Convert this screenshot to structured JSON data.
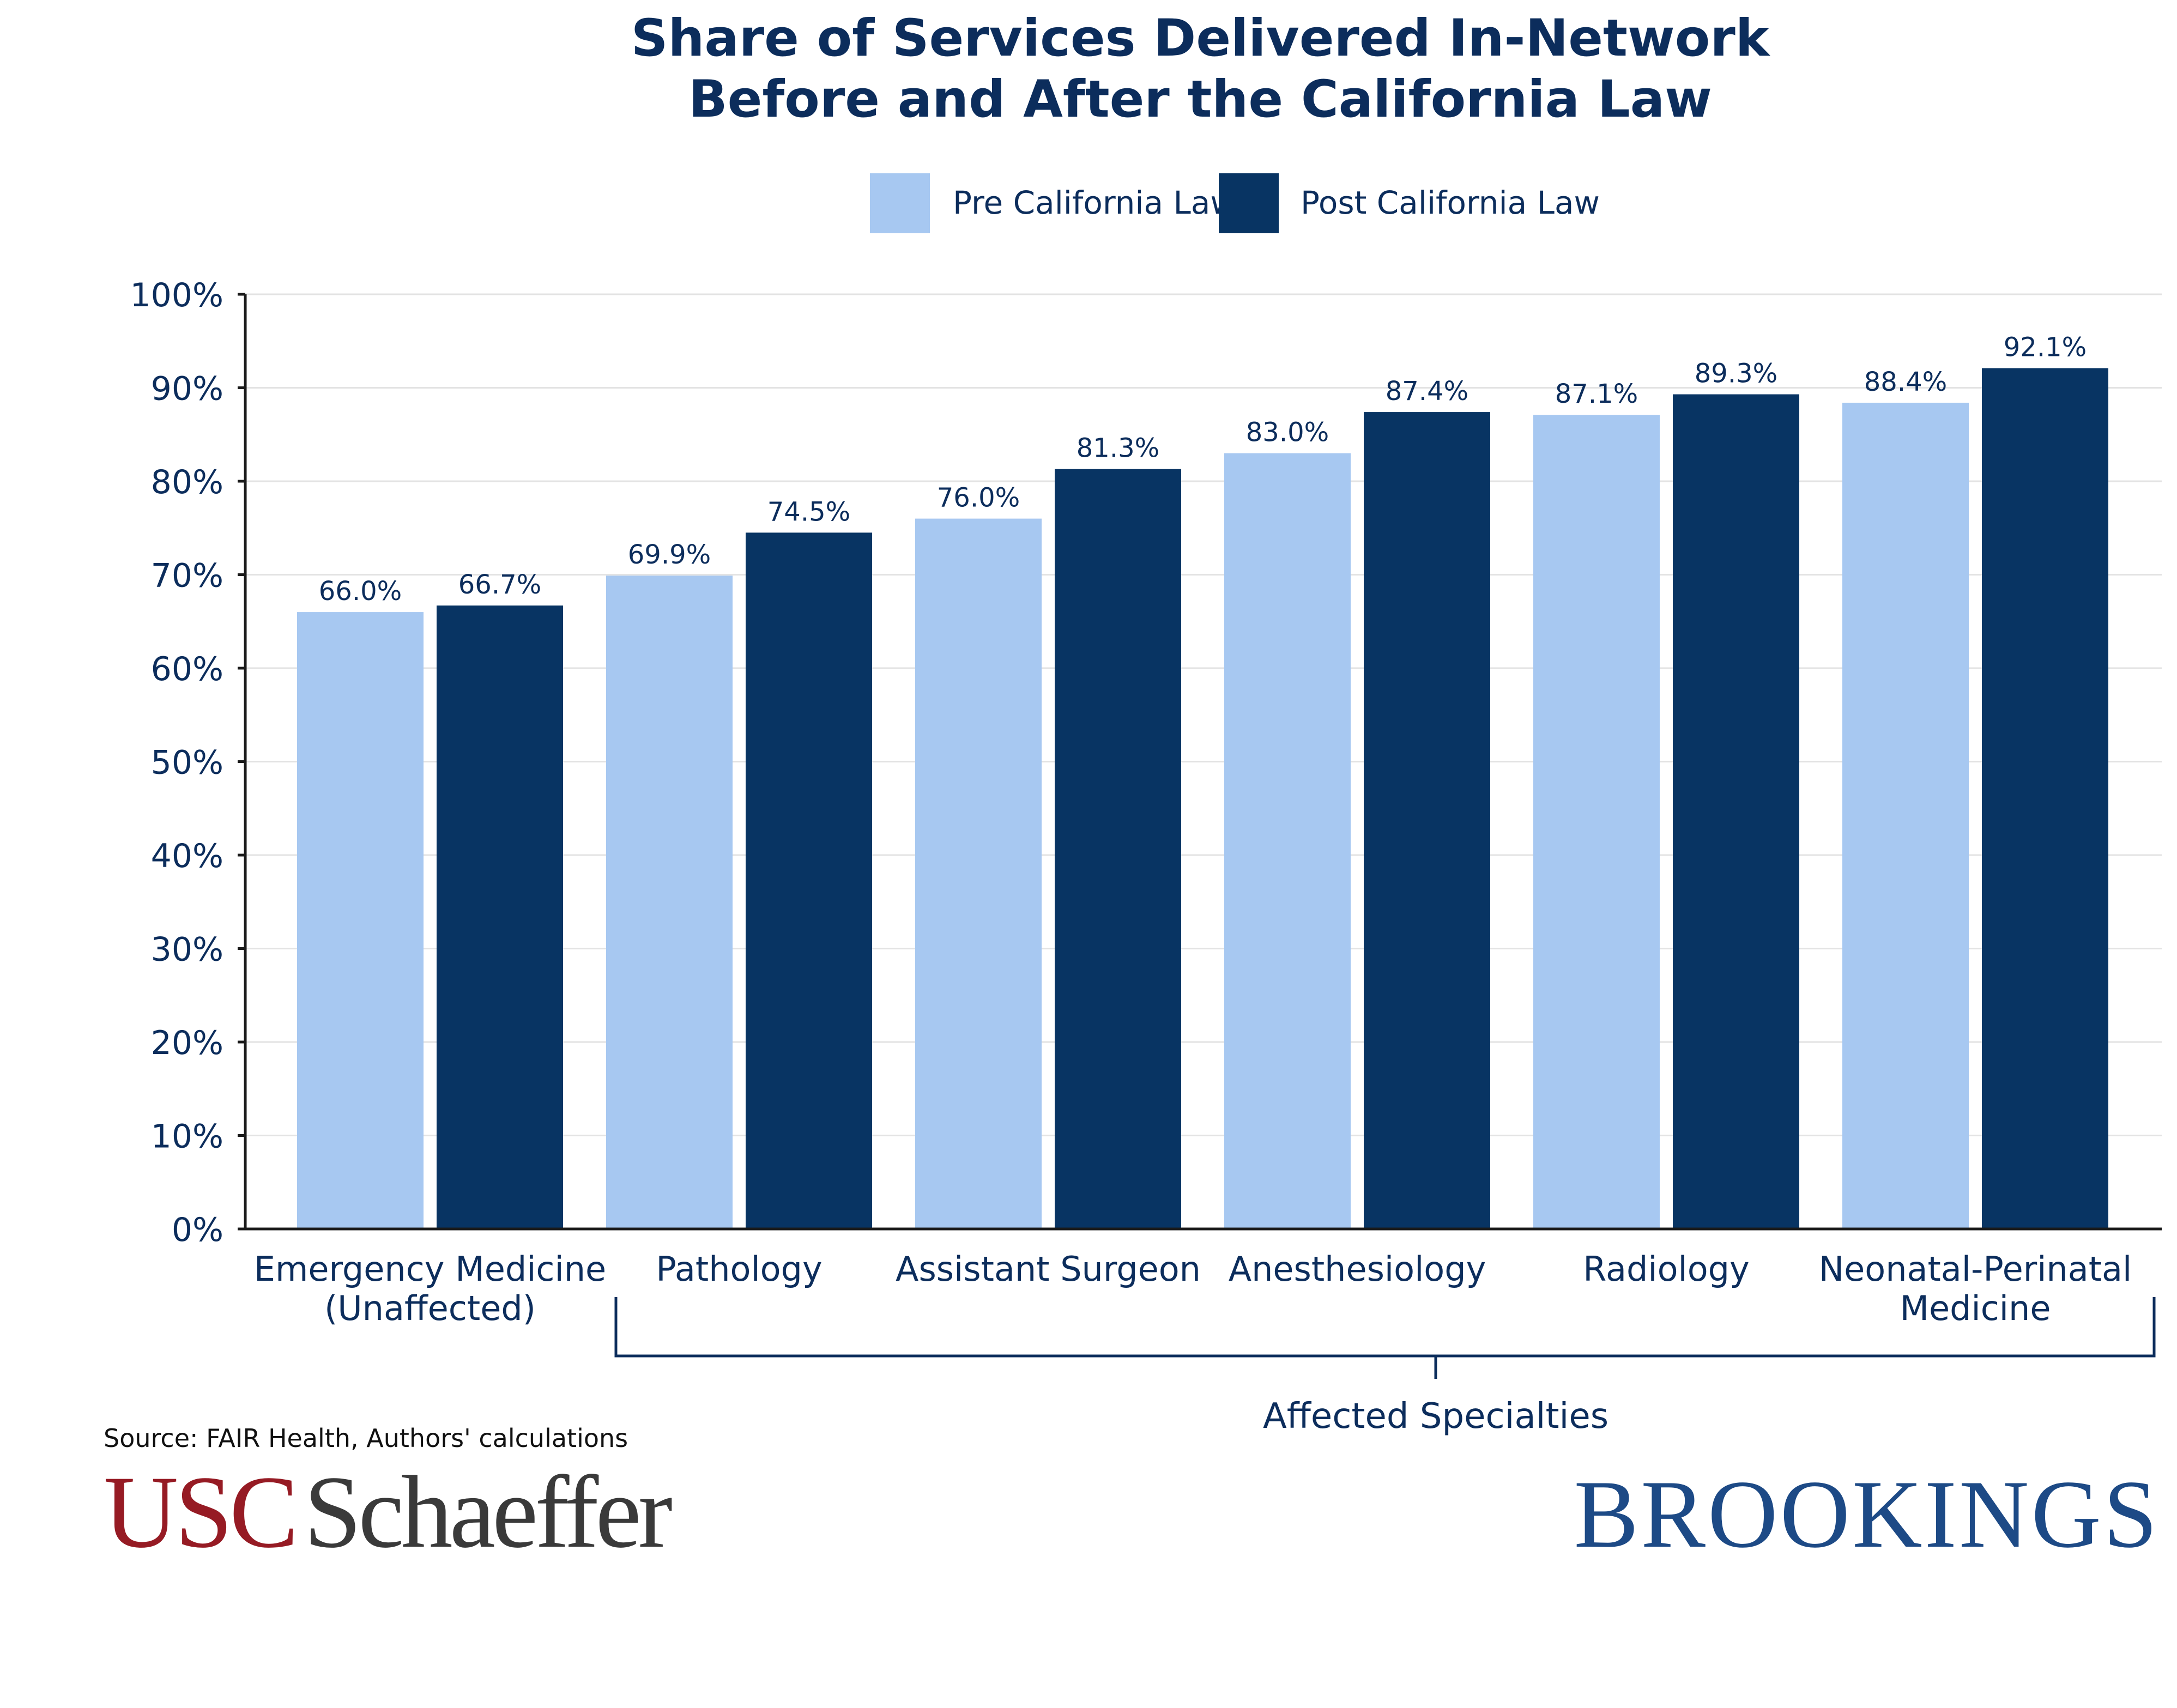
{
  "chart_data": {
    "type": "bar",
    "title": "Share of Services Delivered In-Network",
    "subtitle": "Before and After the California Law",
    "categories": [
      [
        "Emergency Medicine",
        "(Unaffected)"
      ],
      [
        "Pathology"
      ],
      [
        "Assistant Surgeon"
      ],
      [
        "Anesthesiology"
      ],
      [
        "Radiology"
      ],
      [
        "Neonatal-Perinatal",
        "Medicine"
      ]
    ],
    "series": [
      {
        "name": "Pre California Law",
        "color": "#a7c8f1",
        "values": [
          66.0,
          69.9,
          76.0,
          83.0,
          87.1,
          88.4
        ],
        "labels": [
          "66.0%",
          "69.9%",
          "76.0%",
          "83.0%",
          "87.1%",
          "88.4%"
        ]
      },
      {
        "name": "Post California Law",
        "color": "#083463",
        "values": [
          66.7,
          74.5,
          81.3,
          87.4,
          89.3,
          92.1
        ],
        "labels": [
          "66.7%",
          "74.5%",
          "81.3%",
          "87.4%",
          "89.3%",
          "92.1%"
        ]
      }
    ],
    "ylim": [
      0,
      100
    ],
    "yticks": [
      0,
      10,
      20,
      30,
      40,
      50,
      60,
      70,
      80,
      90,
      100
    ],
    "ytick_labels": [
      "0%",
      "10%",
      "20%",
      "30%",
      "40%",
      "50%",
      "60%",
      "70%",
      "80%",
      "90%",
      "100%"
    ],
    "xlabel": "",
    "ylabel": "",
    "grid": true,
    "legend_position": "top-center",
    "annotations": [
      {
        "text": "Affected Specialties",
        "spans_categories": [
          "Pathology",
          "Neonatal-Perinatal Medicine"
        ]
      }
    ]
  },
  "footer": {
    "source": "Source: FAIR Health, Authors' calculations",
    "logo_left_part1": "USC",
    "logo_left_part2": "Schaeffer",
    "logo_right": "BROOKINGS"
  }
}
